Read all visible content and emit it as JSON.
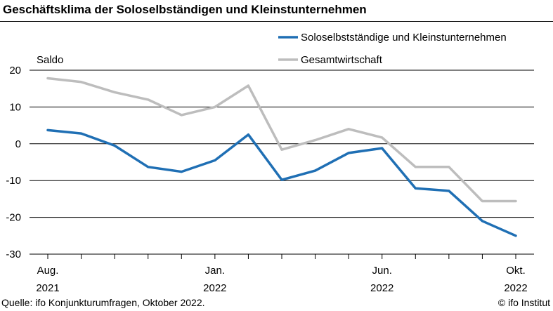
{
  "title": "Geschäftsklima der Soloselbständigen und Kleinstunternehmen",
  "source": "Quelle: ifo Konjunkturumfragen, Oktober 2022.",
  "credit": "© ifo Institut",
  "chart_data": {
    "type": "line",
    "title": "Geschäftsklima der Soloselbständigen und Kleinstunternehmen",
    "ylabel": "Saldo",
    "xlabel": "",
    "ylim": [
      -30,
      20
    ],
    "yticks": [
      20,
      10,
      0,
      -10,
      -20,
      -30
    ],
    "grid": true,
    "legend_position": "top-right",
    "x": [
      "2021-08",
      "2021-09",
      "2021-10",
      "2021-11",
      "2021-12",
      "2022-01",
      "2022-02",
      "2022-03",
      "2022-04",
      "2022-05",
      "2022-06",
      "2022-07",
      "2022-08",
      "2022-09",
      "2022-10"
    ],
    "x_tick_labels": [
      {
        "index": 0,
        "line1": "Aug.",
        "line2": "2021"
      },
      {
        "index": 5,
        "line1": "Jan.",
        "line2": "2022"
      },
      {
        "index": 10,
        "line1": "Jun.",
        "line2": "2022"
      },
      {
        "index": 14,
        "line1": "Okt.",
        "line2": "2022"
      }
    ],
    "series": [
      {
        "name": "Soloselbstständige und Kleinstunternehmen",
        "color": "#1f6fb4",
        "values": [
          3.7,
          2.8,
          -0.5,
          -6.3,
          -7.6,
          -4.5,
          2.5,
          -9.8,
          -7.3,
          -2.5,
          -1.2,
          -12.1,
          -12.8,
          -21.0,
          -25.0
        ]
      },
      {
        "name": "Gesamtwirtschaft",
        "color": "#bdbdbd",
        "values": [
          17.8,
          16.8,
          14.0,
          12.0,
          7.8,
          10.0,
          15.8,
          -1.6,
          1.0,
          4.0,
          1.7,
          -6.3,
          -6.3,
          -15.6,
          -15.6
        ]
      }
    ]
  }
}
